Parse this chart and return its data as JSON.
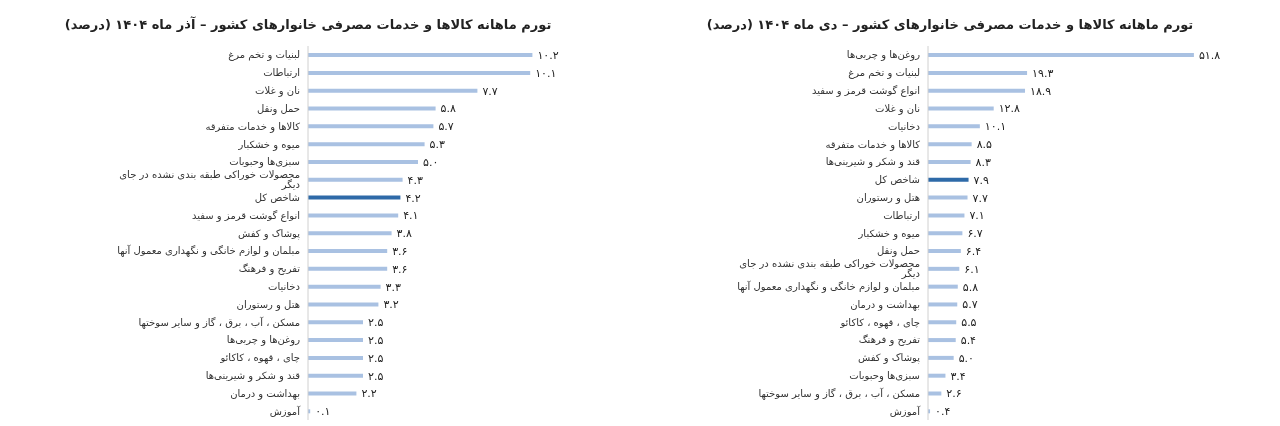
{
  "chart_data": [
    {
      "type": "bar",
      "orientation": "horizontal",
      "title": "تورم ماهانه کالاها و خدمات مصرفی خانوارهای کشور – آذر ماه ۱۴۰۴ (درصد)",
      "categories": [
        "لبنیات و تخم مرغ",
        "ارتباطات",
        "نان و غلات",
        "حمل ونقل",
        "کالاها و خدمات متفرقه",
        "میوه و خشکبار",
        "سبزی‌ها وحبوبات",
        "محصولات خوراکی طبقه بندی نشده در جای دیگر",
        "شاخص کل",
        "انواع گوشت قرمز و سفید",
        "پوشاک و کفش",
        "مبلمان و لوازم خانگی و نگهداری معمول آنها",
        "تفریح و فرهنگ",
        "دخانیات",
        "هتل و رستوران",
        "مسکن ، آب ، برق ، گاز و سایر سوختها",
        "روغن‌ها و چربی‌ها",
        "چای ، قهوه ، کاکائو",
        "قند و شکر و شیرینی‌ها",
        "بهداشت و درمان",
        "آموزش"
      ],
      "values": [
        10.2,
        10.1,
        7.7,
        5.8,
        5.7,
        5.3,
        5.0,
        4.3,
        4.2,
        4.1,
        3.8,
        3.6,
        3.6,
        3.3,
        3.2,
        2.5,
        2.5,
        2.5,
        2.5,
        2.2,
        0.1
      ],
      "value_labels": [
        "۱۰.۲",
        "۱۰.۱",
        "۷.۷",
        "۵.۸",
        "۵.۷",
        "۵.۳",
        "۵.۰",
        "۴.۳",
        "۴.۲",
        "۴.۱",
        "۳.۸",
        "۳.۶",
        "۳.۶",
        "۳.۳",
        "۳.۲",
        "۲.۵",
        "۲.۵",
        "۲.۵",
        "۲.۵",
        "۲.۲",
        "۰.۱"
      ],
      "colors": [
        "#a9c1e2",
        "#a9c1e2",
        "#a9c1e2",
        "#a9c1e2",
        "#a9c1e2",
        "#a9c1e2",
        "#a9c1e2",
        "#a9c1e2",
        "#2e6aa8",
        "#a9c1e2",
        "#a9c1e2",
        "#a9c1e2",
        "#a9c1e2",
        "#a9c1e2",
        "#a9c1e2",
        "#a9c1e2",
        "#a9c1e2",
        "#a9c1e2",
        "#a9c1e2",
        "#a9c1e2",
        "#a9c1e2"
      ],
      "tick_labels": "y"
    },
    {
      "type": "bar",
      "orientation": "horizontal",
      "title": "تورم ماهانه کالاها و خدمات مصرفی خانوارهای کشور – دی ماه ۱۴۰۴ (درصد)",
      "categories": [
        "روغن‌ها و چربی‌ها",
        "لبنیات و تخم مرغ",
        "انواع گوشت قرمز و سفید",
        "نان و غلات",
        "دخانیات",
        "کالاها و خدمات متفرقه",
        "قند و شکر و شیرینی‌ها",
        "شاخص کل",
        "هتل و رستوران",
        "ارتباطات",
        "میوه و خشکبار",
        "حمل ونقل",
        "محصولات خوراکی طبقه بندی نشده در جای دیگر",
        "مبلمان و لوازم خانگی و نگهداری معمول آنها",
        "بهداشت و درمان",
        "چای ، قهوه ، کاکائو",
        "تفریح و فرهنگ",
        "پوشاک و کفش",
        "سبزی‌ها وحبوبات",
        "مسکن ، آب ، برق ، گاز و سایر سوختها",
        "آموزش"
      ],
      "values": [
        51.8,
        19.3,
        18.9,
        12.8,
        10.1,
        8.5,
        8.3,
        7.9,
        7.7,
        7.1,
        6.7,
        6.4,
        6.1,
        5.8,
        5.7,
        5.5,
        5.4,
        5.0,
        3.4,
        2.6,
        0.4
      ],
      "value_labels": [
        "۵۱.۸",
        "۱۹.۳",
        "۱۸.۹",
        "۱۲.۸",
        "۱۰.۱",
        "۸.۵",
        "۸.۳",
        "۷.۹",
        "۷.۷",
        "۷.۱",
        "۶.۷",
        "۶.۴",
        "۶.۱",
        "۵.۸",
        "۵.۷",
        "۵.۵",
        "۵.۴",
        "۵.۰",
        "۳.۴",
        "۲.۶",
        "۰.۴"
      ],
      "colors": [
        "#a9c1e2",
        "#a9c1e2",
        "#a9c1e2",
        "#a9c1e2",
        "#a9c1e2",
        "#a9c1e2",
        "#a9c1e2",
        "#2e6aa8",
        "#a9c1e2",
        "#a9c1e2",
        "#a9c1e2",
        "#a9c1e2",
        "#a9c1e2",
        "#a9c1e2",
        "#a9c1e2",
        "#a9c1e2",
        "#a9c1e2",
        "#a9c1e2",
        "#a9c1e2",
        "#a9c1e2",
        "#a9c1e2"
      ],
      "tick_labels": "y"
    }
  ]
}
